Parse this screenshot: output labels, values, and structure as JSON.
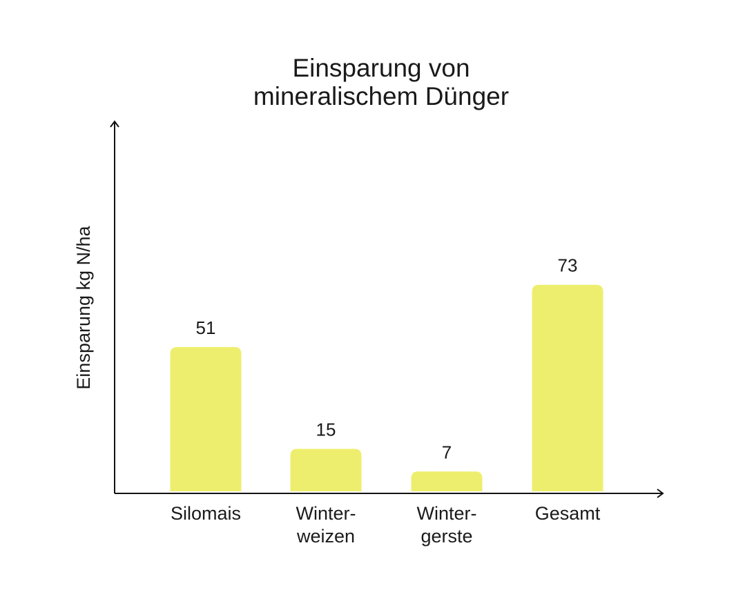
{
  "chart_data": {
    "type": "bar",
    "title": [
      "Einsparung von",
      "mineralischem Dünger"
    ],
    "ylabel": "Einsparung kg N/ha",
    "xlabel": "",
    "categories": [
      [
        "Silomais"
      ],
      [
        "Winter-",
        "weizen"
      ],
      [
        "Winter-",
        "gerste"
      ],
      [
        "Gesamt"
      ]
    ],
    "values": [
      51,
      15,
      7,
      73
    ],
    "data_labels": [
      "51",
      "15",
      "7",
      "73"
    ],
    "ylim": [
      0,
      100
    ],
    "grid": false,
    "legend": "none",
    "colors": {
      "bar": "#eeee6e",
      "axis": "#111111",
      "text": "#1a1a1a",
      "background": "#ffffff"
    }
  }
}
